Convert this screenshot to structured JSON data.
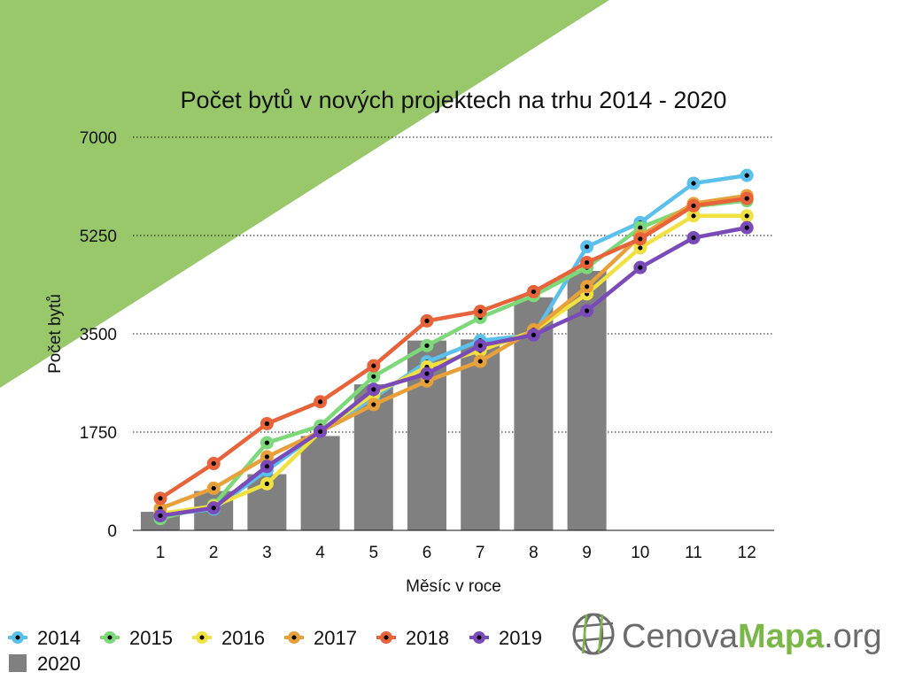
{
  "colors": {
    "background_triangle": "#98c86a",
    "grid": "#111111",
    "marker_center": "#000000",
    "bars": "#808080",
    "brand_gray": "#6b6b6b",
    "brand_green": "#7ab648"
  },
  "chart_data": {
    "type": "line",
    "title": "Počet bytů v nových projektech na trhu 2014 - 2020",
    "xlabel": "Měsíc v roce",
    "ylabel": "Počet bytů",
    "categories": [
      "1",
      "2",
      "3",
      "4",
      "5",
      "6",
      "7",
      "8",
      "9",
      "10",
      "11",
      "12"
    ],
    "y_ticks": [
      "0",
      "1750",
      "3500",
      "5250",
      "7000"
    ],
    "ylim": [
      0,
      7000
    ],
    "grid": "horizontal dotted",
    "legend_position": "bottom-left",
    "bar_series": {
      "name": "2020",
      "color": "#808080",
      "values": [
        330,
        700,
        1000,
        1680,
        2600,
        3380,
        3400,
        4150,
        4620
      ]
    },
    "series": [
      {
        "name": "2014",
        "color": "#5bc0eb",
        "values": [
          270,
          380,
          1070,
          1760,
          2360,
          3000,
          3380,
          3480,
          5050,
          5480,
          6180,
          6320
        ]
      },
      {
        "name": "2015",
        "color": "#7dd87a",
        "values": [
          210,
          450,
          1560,
          1860,
          2740,
          3290,
          3790,
          4180,
          4680,
          5390,
          5770,
          5870
        ]
      },
      {
        "name": "2016",
        "color": "#f0e040",
        "values": [
          300,
          430,
          830,
          1760,
          2430,
          2910,
          3200,
          3550,
          4210,
          5030,
          5600,
          5600
        ]
      },
      {
        "name": "2017",
        "color": "#e8a03a",
        "values": [
          390,
          750,
          1310,
          1760,
          2240,
          2660,
          3010,
          3570,
          4340,
          5240,
          5820,
          5960
        ]
      },
      {
        "name": "2018",
        "color": "#e8623a",
        "values": [
          570,
          1190,
          1900,
          2290,
          2930,
          3730,
          3900,
          4250,
          4770,
          5190,
          5780,
          5910
        ]
      },
      {
        "name": "2019",
        "color": "#7a4ab8",
        "values": [
          260,
          400,
          1140,
          1760,
          2510,
          2790,
          3290,
          3480,
          3910,
          4680,
          5210,
          5390
        ]
      }
    ]
  },
  "logo": {
    "text_part1": "Cenova",
    "text_part2": "Mapa",
    "text_part3": ".org",
    "icon": "globe-grid-icon"
  }
}
